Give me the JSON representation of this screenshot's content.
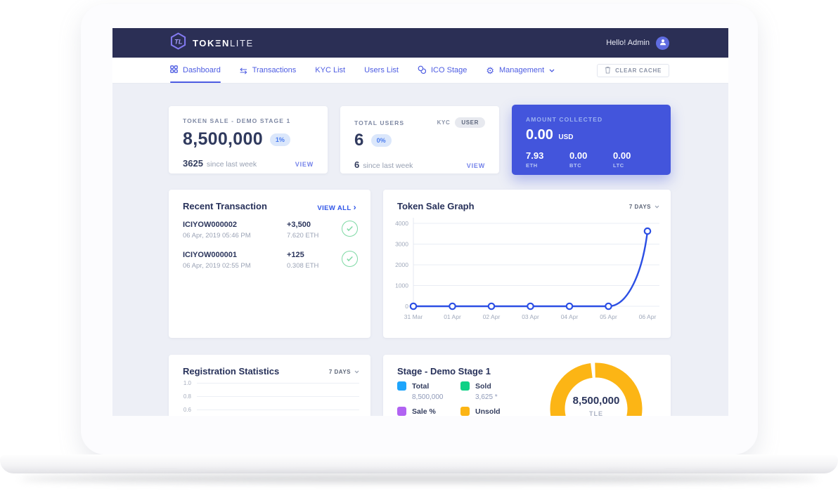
{
  "navbar": {
    "brand_primary": "TOKΞN",
    "brand_secondary": "LITE",
    "greeting": "Hello! Admin"
  },
  "nav": {
    "items": [
      {
        "label": "Dashboard",
        "icon": "grid-icon",
        "active": true
      },
      {
        "label": "Transactions",
        "icon": "transfer-arrows-icon",
        "active": false
      },
      {
        "label": "KYC List",
        "icon": "",
        "active": false
      },
      {
        "label": "Users List",
        "icon": "",
        "active": false
      },
      {
        "label": "ICO Stage",
        "icon": "coins-icon",
        "active": false
      },
      {
        "label": "Management",
        "icon": "gear-icon",
        "active": false,
        "has_chevron": true
      }
    ],
    "clear_cache_label": "CLEAR CACHE"
  },
  "cards": {
    "token_sale": {
      "title": "TOKEN SALE - DEMO STAGE 1",
      "value": "8,500,000",
      "badge": "1%",
      "delta": "3625",
      "delta_note": "since last week",
      "view_label": "VIEW"
    },
    "total_users": {
      "title": "TOTAL USERS",
      "toggle_kyc": "KYC",
      "toggle_user": "USER",
      "value": "6",
      "badge": "0%",
      "delta": "6",
      "delta_note": "since last week",
      "view_label": "VIEW"
    },
    "amount_collected": {
      "title": "AMOUNT COLLECTED",
      "value": "0.00",
      "currency": "USD",
      "alts": [
        {
          "value": "7.93",
          "unit": "ETH"
        },
        {
          "value": "0.00",
          "unit": "BTC"
        },
        {
          "value": "0.00",
          "unit": "LTC"
        }
      ]
    }
  },
  "transactions": {
    "title": "Recent Transaction",
    "view_all": "VIEW ALL",
    "rows": [
      {
        "id": "ICIYOW000002",
        "date": "06 Apr, 2019 05:46 PM",
        "amount": "+3,500",
        "eth": "7.620 ETH",
        "status": "confirmed"
      },
      {
        "id": "ICIYOW000001",
        "date": "06 Apr, 2019 02:55 PM",
        "amount": "+125",
        "eth": "0.308 ETH",
        "status": "confirmed"
      }
    ]
  },
  "chart_data": [
    {
      "type": "line",
      "title": "Token Sale Graph",
      "range_label": "7 DAYS",
      "x": [
        "31 Mar",
        "01 Apr",
        "02 Apr",
        "03 Apr",
        "04 Apr",
        "05 Apr",
        "06 Apr"
      ],
      "values": [
        0,
        0,
        0,
        0,
        0,
        0,
        3625
      ],
      "ylim": [
        0,
        4000
      ],
      "yticks": [
        0,
        1000,
        2000,
        3000,
        4000
      ],
      "line_color": "#2c4fe4",
      "grid": true,
      "legend_position": "none"
    },
    {
      "type": "line",
      "title": "Registration Statistics",
      "range_label": "7 DAYS",
      "yticks": [
        1.0,
        0.8,
        0.6
      ]
    },
    {
      "type": "donut",
      "title": "Stage - Demo Stage 1",
      "center_value": "8,500,000",
      "center_unit": "TLE",
      "arc_color": "#fcb515",
      "legend": [
        {
          "label": "Total",
          "value": "8,500,000",
          "color": "#1ea5fc"
        },
        {
          "label": "Sold",
          "value": "3,625 *",
          "color": "#10d186"
        },
        {
          "label": "Sale %",
          "value": "",
          "color": "#b163f2"
        },
        {
          "label": "Unsold",
          "value": "",
          "color": "#fcb515"
        }
      ]
    }
  ]
}
